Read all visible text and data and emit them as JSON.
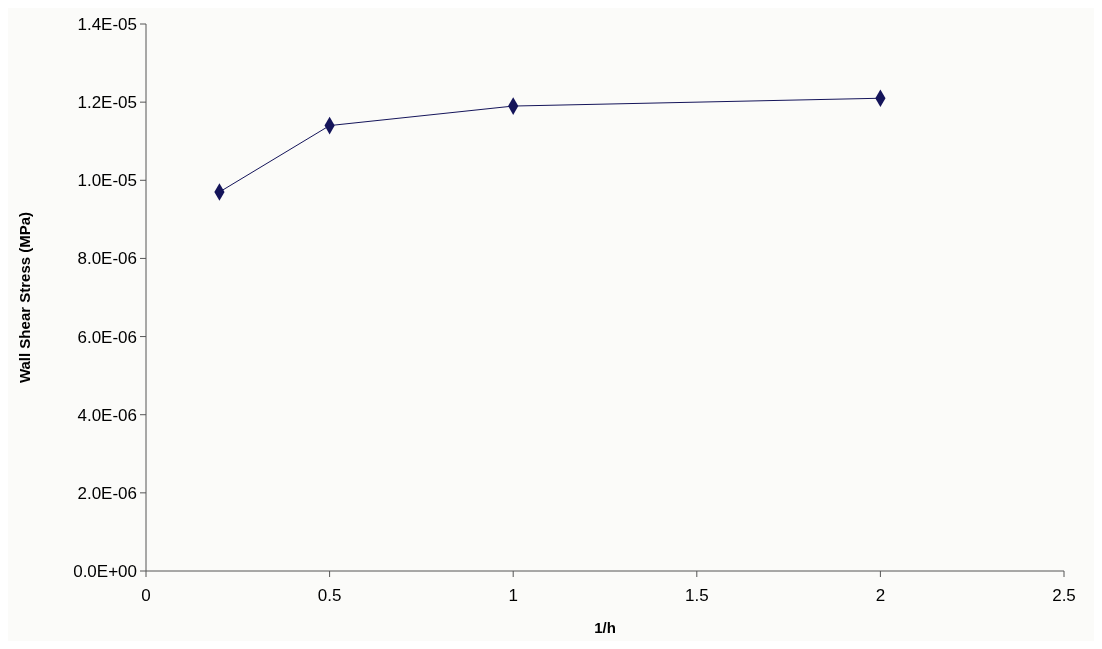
{
  "chart_data": {
    "type": "line",
    "xlabel": "1/h",
    "ylabel": "Wall Shear Stress (MPa)",
    "series": [
      {
        "color": "#14145a",
        "x": [
          0.2,
          0.5,
          1,
          2
        ],
        "values": [
          9.7e-06,
          1.14e-05,
          1.19e-05,
          1.21e-05
        ]
      }
    ],
    "xlim": [
      0,
      2.5
    ],
    "xticks": [
      0,
      0.5,
      1,
      1.5,
      2,
      2.5
    ],
    "ylim": [
      0,
      1.4e-05
    ],
    "yticks": [
      {
        "value": 0,
        "label": "0.0E+00"
      },
      {
        "value": 2e-06,
        "label": "2.0E-06"
      },
      {
        "value": 4e-06,
        "label": "4.0E-06"
      },
      {
        "value": 6e-06,
        "label": "6.0E-06"
      },
      {
        "value": 8e-06,
        "label": "8.0E-06"
      },
      {
        "value": 1e-05,
        "label": "1.0E-05"
      },
      {
        "value": 1.2e-05,
        "label": "1.2E-05"
      },
      {
        "value": 1.4e-05,
        "label": "1.4E-05"
      }
    ],
    "grid": false,
    "marker": "diamond",
    "line_style": "solid"
  }
}
